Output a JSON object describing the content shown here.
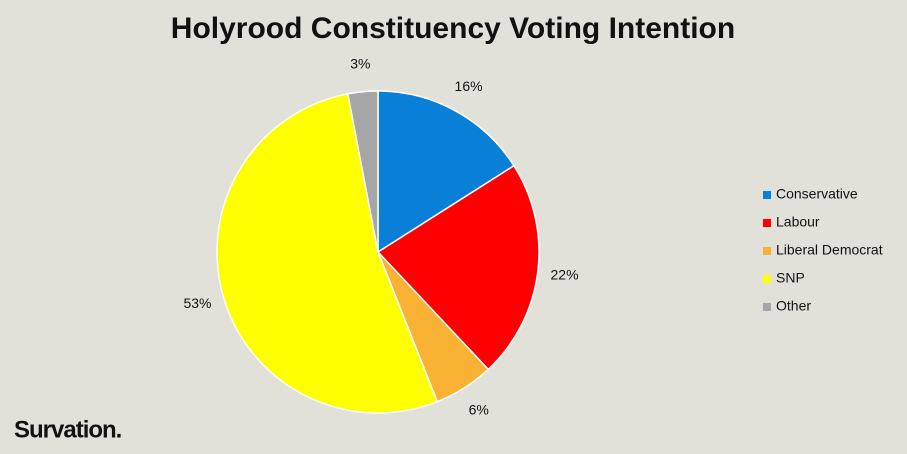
{
  "chart_data": {
    "type": "pie",
    "title": "Holyrood Constituency Voting Intention",
    "categories": [
      "Conservative",
      "Labour",
      "Liberal Democrat",
      "SNP",
      "Other"
    ],
    "values": [
      16,
      22,
      6,
      53,
      3
    ],
    "value_labels": [
      "16%",
      "22%",
      "6%",
      "53%",
      "3%"
    ],
    "colors": [
      "#0a7fd8",
      "#ff0000",
      "#f9b234",
      "#ffff00",
      "#a6a6a6"
    ],
    "legend": "right",
    "logo": "Survation."
  }
}
